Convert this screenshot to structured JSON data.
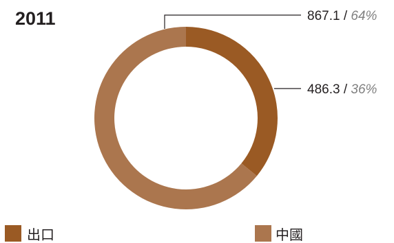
{
  "chart_data": {
    "type": "pie",
    "title": "2011",
    "donut": true,
    "slices": [
      {
        "label": "出口",
        "value": 486.3,
        "percent": 36,
        "display_value": "486.3",
        "display_percent": "36%",
        "color": "#9a5a24"
      },
      {
        "label": "中國",
        "value": 867.1,
        "percent": 64,
        "display_value": "867.1",
        "display_percent": "64%",
        "color": "#ab764e"
      }
    ],
    "separator": " / ",
    "legend": {
      "position": "bottom",
      "items": [
        {
          "label": "出口",
          "color": "#9a5a24"
        },
        {
          "label": "中國",
          "color": "#ab764e"
        }
      ]
    }
  }
}
